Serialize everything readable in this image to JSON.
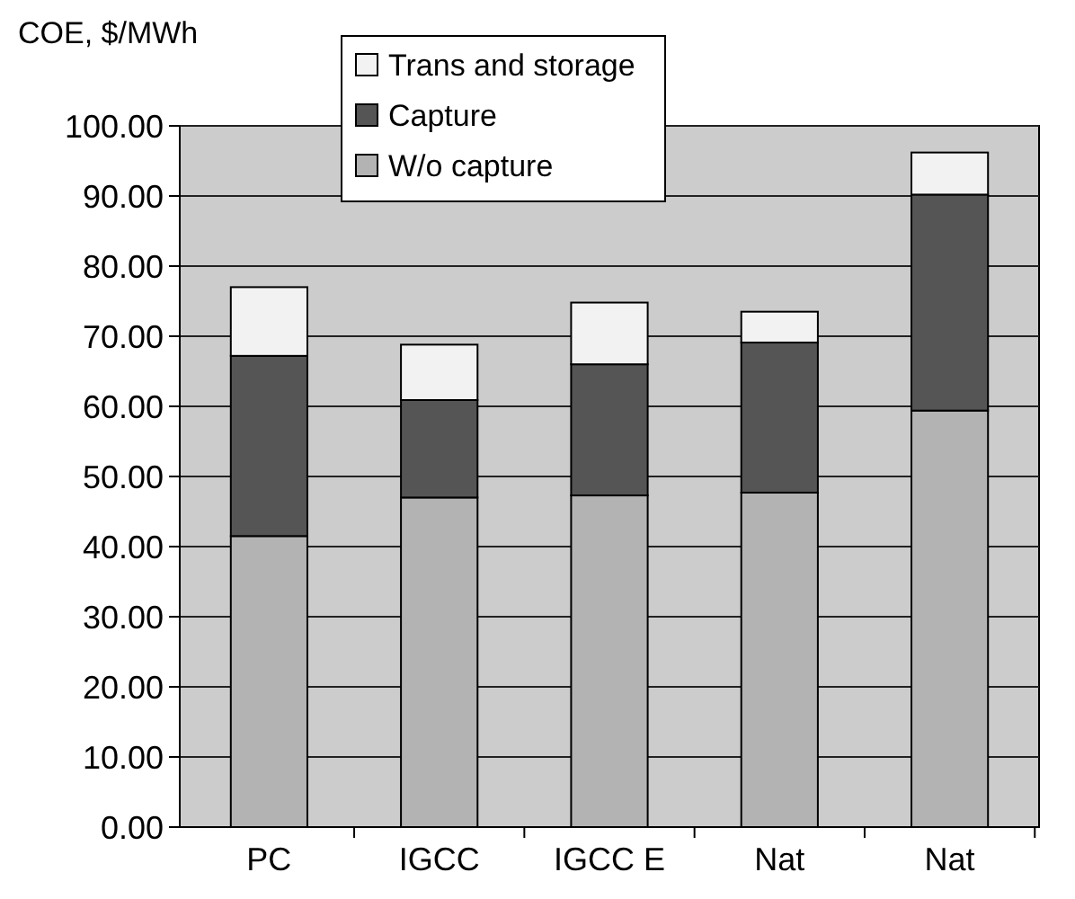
{
  "chart_data": {
    "type": "bar",
    "ylabel": "COE, $/MWh",
    "categories": [
      "PC",
      "IGCC",
      "IGCC E",
      "Nat",
      "Nat"
    ],
    "stacked": true,
    "series": [
      {
        "name": "W/o capture",
        "color": "#b3b3b3",
        "values": [
          41.5,
          47.0,
          47.3,
          47.7,
          59.4
        ]
      },
      {
        "name": "Capture",
        "color": "#555555",
        "values": [
          25.7,
          13.9,
          18.7,
          21.4,
          30.8
        ]
      },
      {
        "name": "Trans and storage",
        "color": "#f2f2f2",
        "values": [
          9.8,
          7.9,
          8.8,
          4.4,
          6.0
        ]
      }
    ],
    "ylim": [
      0,
      100
    ],
    "yticks": [
      {
        "value": 0,
        "label": "0.00"
      },
      {
        "value": 10,
        "label": "10.00"
      },
      {
        "value": 20,
        "label": "20.00"
      },
      {
        "value": 30,
        "label": "30.00"
      },
      {
        "value": 40,
        "label": "40.00"
      },
      {
        "value": 50,
        "label": "50.00"
      },
      {
        "value": 60,
        "label": "60.00"
      },
      {
        "value": 70,
        "label": "70.00"
      },
      {
        "value": 80,
        "label": "80.00"
      },
      {
        "value": 90,
        "label": "90.00"
      },
      {
        "value": 100,
        "label": "100.00"
      }
    ],
    "grid": "y",
    "legend": "top"
  }
}
